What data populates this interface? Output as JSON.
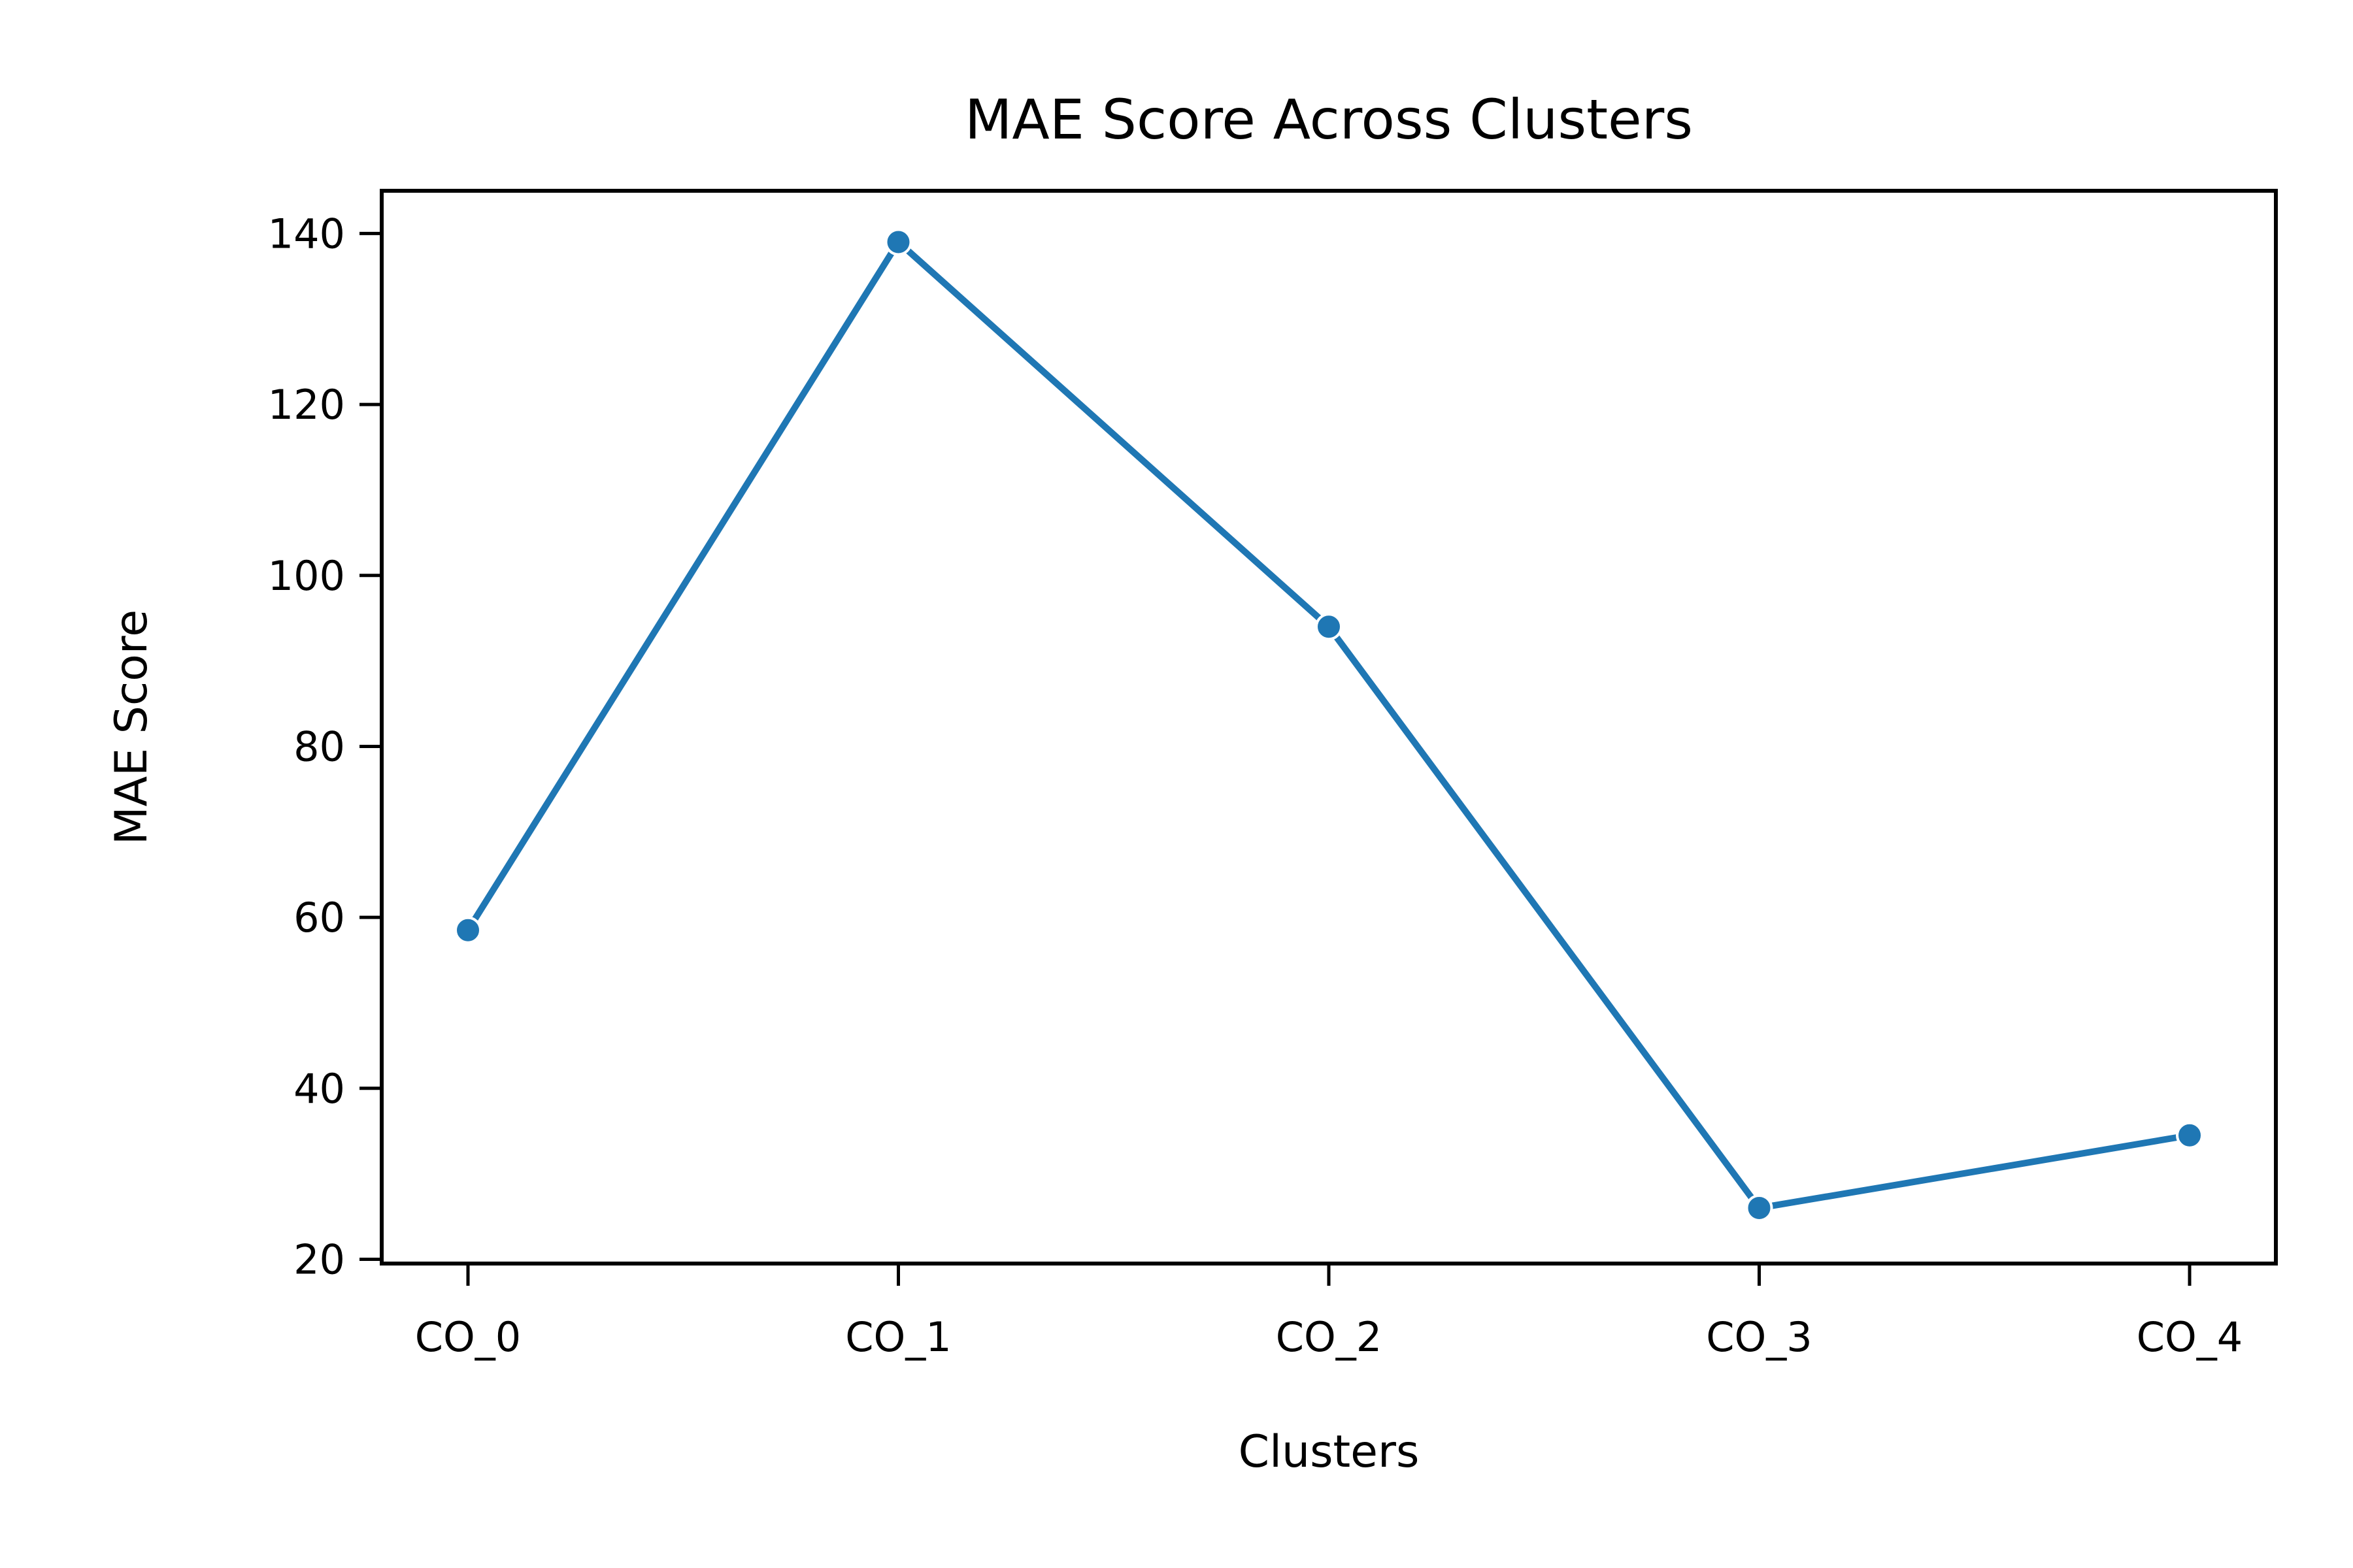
{
  "chart_data": {
    "type": "line",
    "title": "MAE Score Across Clusters",
    "xlabel": "Clusters",
    "ylabel": "MAE Score",
    "categories": [
      "CO_0",
      "CO_1",
      "CO_2",
      "CO_3",
      "CO_4"
    ],
    "series": [
      {
        "values": [
          58.5,
          139,
          94,
          26,
          34.5
        ]
      }
    ],
    "ylim": [
      19.5,
      145
    ],
    "yticks": [
      20,
      40,
      60,
      80,
      100,
      120,
      140
    ],
    "grid": false,
    "legend": "none",
    "markers": true,
    "line_color": "#1f77b4"
  }
}
